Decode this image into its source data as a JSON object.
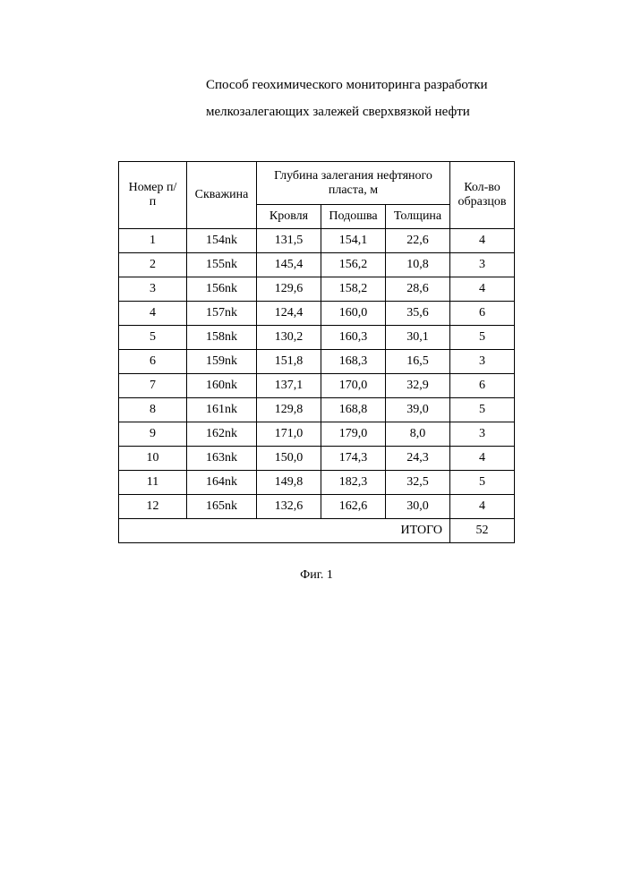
{
  "title_line1": "Способ геохимического мониторинга разработки",
  "title_line2": "мелкозалегающих залежей сверхвязкой нефти",
  "table": {
    "headers": {
      "number": "Номер п/п",
      "well": "Скважина",
      "depth_group": "Глубина залегания нефтяного пласта, м",
      "roof": "Кровля",
      "sole": "Подошва",
      "thickness": "Толщина",
      "samples": "Кол-во образцов"
    },
    "rows": [
      {
        "n": "1",
        "well": "154nk",
        "roof": "131,5",
        "sole": "154,1",
        "thick": "22,6",
        "samples": "4"
      },
      {
        "n": "2",
        "well": "155nk",
        "roof": "145,4",
        "sole": "156,2",
        "thick": "10,8",
        "samples": "3"
      },
      {
        "n": "3",
        "well": "156nk",
        "roof": "129,6",
        "sole": "158,2",
        "thick": "28,6",
        "samples": "4"
      },
      {
        "n": "4",
        "well": "157nk",
        "roof": "124,4",
        "sole": "160,0",
        "thick": "35,6",
        "samples": "6"
      },
      {
        "n": "5",
        "well": "158nk",
        "roof": "130,2",
        "sole": "160,3",
        "thick": "30,1",
        "samples": "5"
      },
      {
        "n": "6",
        "well": "159nk",
        "roof": "151,8",
        "sole": "168,3",
        "thick": "16,5",
        "samples": "3"
      },
      {
        "n": "7",
        "well": "160nk",
        "roof": "137,1",
        "sole": "170,0",
        "thick": "32,9",
        "samples": "6"
      },
      {
        "n": "8",
        "well": "161nk",
        "roof": "129,8",
        "sole": "168,8",
        "thick": "39,0",
        "samples": "5"
      },
      {
        "n": "9",
        "well": "162nk",
        "roof": "171,0",
        "sole": "179,0",
        "thick": "8,0",
        "samples": "3"
      },
      {
        "n": "10",
        "well": "163nk",
        "roof": "150,0",
        "sole": "174,3",
        "thick": "24,3",
        "samples": "4"
      },
      {
        "n": "11",
        "well": "164nk",
        "roof": "149,8",
        "sole": "182,3",
        "thick": "32,5",
        "samples": "5"
      },
      {
        "n": "12",
        "well": "165nk",
        "roof": "132,6",
        "sole": "162,6",
        "thick": "30,0",
        "samples": "4"
      }
    ],
    "footer": {
      "label": "ИТОГО",
      "total": "52"
    }
  },
  "caption": "Фиг. 1"
}
